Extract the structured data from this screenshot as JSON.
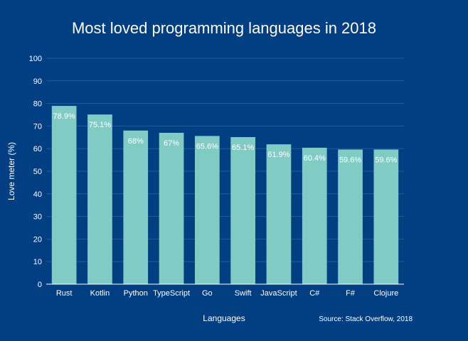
{
  "chart_data": {
    "type": "bar",
    "title": "Most loved programming languages in 2018",
    "xlabel": "Languages",
    "ylabel": "Love meter (%)",
    "ylim": [
      0,
      100
    ],
    "yticks": [
      0,
      10,
      20,
      30,
      40,
      50,
      60,
      70,
      80,
      90,
      100
    ],
    "categories": [
      "Rust",
      "Kotlin",
      "Python",
      "TypeScript",
      "Go",
      "Swift",
      "JavaScript",
      "C#",
      "F#",
      "Clojure"
    ],
    "values": [
      78.9,
      75.1,
      68,
      67,
      65.6,
      65.1,
      61.9,
      60.4,
      59.6,
      59.6
    ],
    "data_labels": [
      "78.9%",
      "75.1%",
      "68%",
      "67%",
      "65.6%",
      "65.1%",
      "61.9%",
      "60.4%",
      "59.6%",
      "59.6%"
    ],
    "annotation": "Source: Stack Overflow, 2018",
    "grid": true,
    "colors": {
      "background": "#023e82",
      "bar": "#80cbc4",
      "text": "#ffffff",
      "grid": "#2a5a96"
    }
  }
}
